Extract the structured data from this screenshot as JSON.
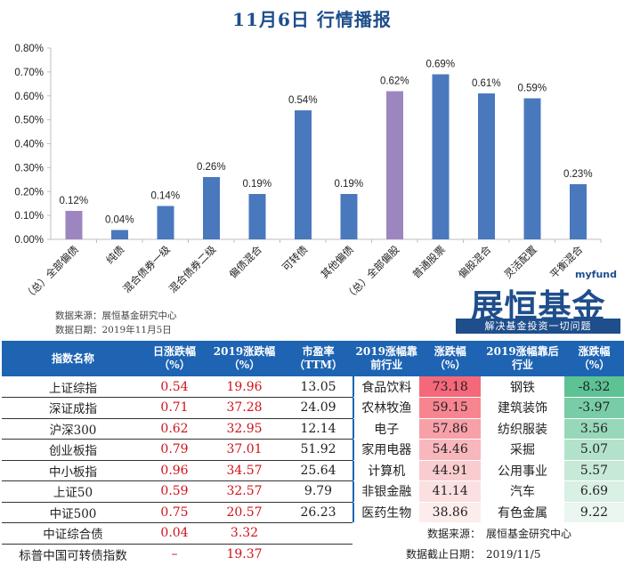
{
  "title": "11月6日  行情播报",
  "chart_data": {
    "type": "bar",
    "categories": [
      "（总）全部偏债",
      "纯债",
      "混合债券一级",
      "混合债券二级",
      "偏债混合",
      "可转债",
      "其他偏债",
      "（总）全部偏股",
      "普通股票",
      "偏股混合",
      "灵活配置",
      "平衡混合"
    ],
    "values": [
      0.12,
      0.04,
      0.14,
      0.26,
      0.19,
      0.54,
      0.19,
      0.62,
      0.69,
      0.61,
      0.59,
      0.23
    ],
    "value_labels": [
      "0.12%",
      "0.04%",
      "0.14%",
      "0.26%",
      "0.19%",
      "0.54%",
      "0.19%",
      "0.62%",
      "0.69%",
      "0.61%",
      "0.59%",
      "0.23%"
    ],
    "highlight_indices": [
      0,
      7
    ],
    "colors": {
      "normal": "#4a78bd",
      "highlight": "#9d86c0"
    },
    "ylim": [
      0,
      0.8
    ],
    "yticks": [
      "0.00%",
      "0.10%",
      "0.20%",
      "0.30%",
      "0.40%",
      "0.50%",
      "0.60%",
      "0.70%",
      "0.80%"
    ],
    "grid": false
  },
  "source_lines": [
    "数据来源：展恒基金研究中心",
    "数据日期：2019年11月5日"
  ],
  "logo": {
    "small": "myfund",
    "big": "展恒基金",
    "tagline": "解决基金投资一切问题"
  },
  "left_table": {
    "headers": [
      "指数名称",
      "日涨跌幅（%）",
      "2019涨跌幅（%）",
      "市盈率（TTM）"
    ],
    "rows": [
      [
        "上证综指",
        "0.54",
        "19.96",
        "13.05"
      ],
      [
        "深证成指",
        "0.71",
        "37.28",
        "24.09"
      ],
      [
        "沪深300",
        "0.62",
        "32.95",
        "12.14"
      ],
      [
        "创业板指",
        "0.79",
        "37.01",
        "51.92"
      ],
      [
        "中小板指",
        "0.96",
        "34.57",
        "25.64"
      ],
      [
        "上证50",
        "0.59",
        "32.57",
        "9.79"
      ],
      [
        "中证500",
        "0.75",
        "20.57",
        "26.23"
      ],
      [
        "中证综合债",
        "0.04",
        "3.32",
        ""
      ],
      [
        "标普中国可转债指数",
        "–",
        "19.37",
        ""
      ]
    ]
  },
  "right_table": {
    "headers": [
      "2019涨幅靠前行业",
      "涨跌幅（%）",
      "2019涨幅靠后行业",
      "涨跌幅（%）"
    ],
    "rows": [
      [
        "食品饮料",
        "73.18",
        "钢铁",
        "-8.32"
      ],
      [
        "农林牧渔",
        "59.15",
        "建筑装饰",
        "-3.97"
      ],
      [
        "电子",
        "57.86",
        "纺织服装",
        "3.56"
      ],
      [
        "家用电器",
        "54.46",
        "采掘",
        "5.07"
      ],
      [
        "计算机",
        "44.91",
        "公用事业",
        "5.57"
      ],
      [
        "非银金融",
        "41.14",
        "汽车",
        "6.69"
      ],
      [
        "医药生物",
        "38.86",
        "有色金属",
        "9.22"
      ]
    ],
    "top_colors": [
      "#f5687a",
      "#f78590",
      "#f8a0a8",
      "#f8b7bc",
      "#f9cdd0",
      "#fbe0e1",
      "#fdecec"
    ],
    "bottom_colors": [
      "#5dc294",
      "#79cda6",
      "#97d8b9",
      "#b3e2cb",
      "#c7e9d8",
      "#d9f0e4",
      "#eaf6ef"
    ],
    "notes": [
      [
        "数据来源：",
        "展恒基金研究中心"
      ],
      [
        "数据截止日期：",
        "2019/11/5"
      ]
    ]
  }
}
